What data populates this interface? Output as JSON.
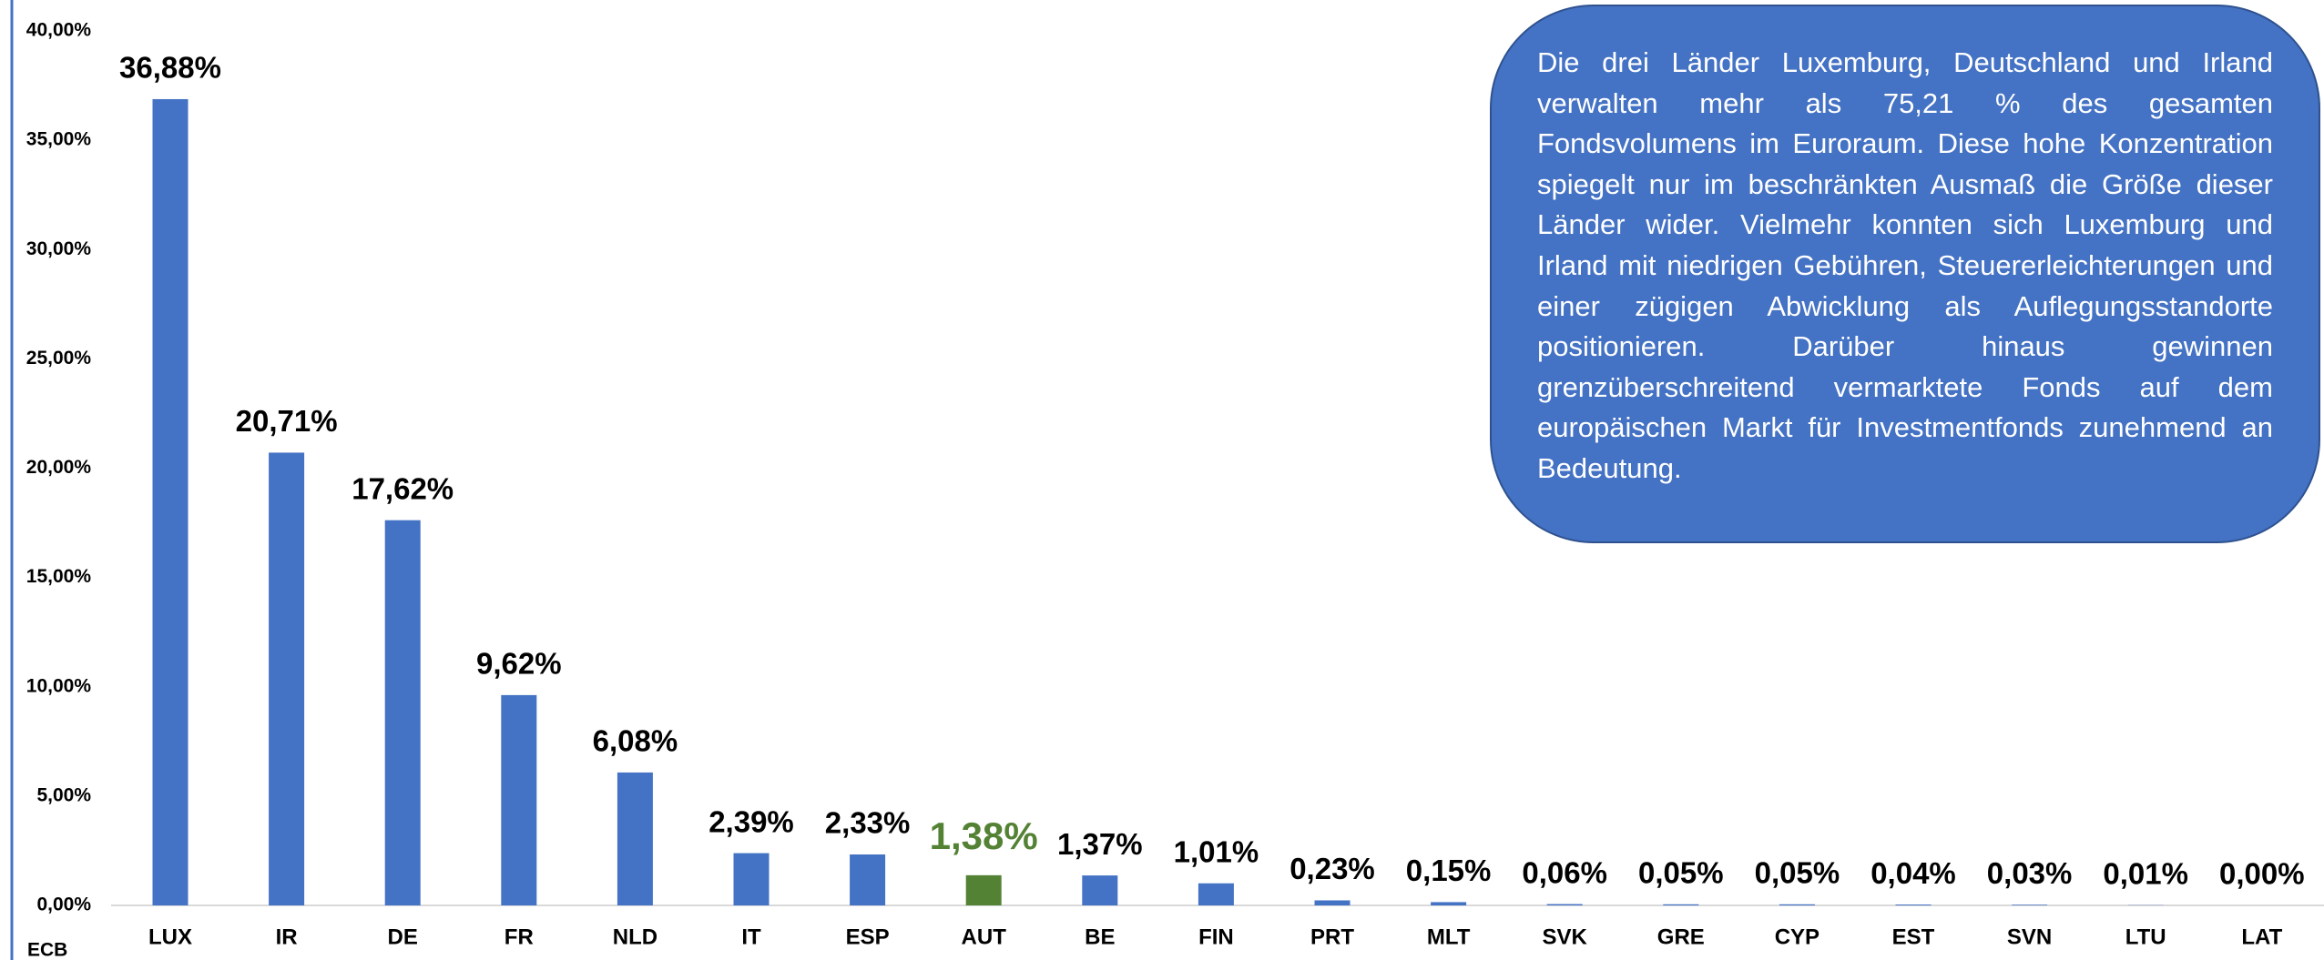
{
  "chart_data": {
    "type": "bar",
    "categories": [
      "LUX",
      "IR",
      "DE",
      "FR",
      "NLD",
      "IT",
      "ESP",
      "AUT",
      "BE",
      "FIN",
      "PRT",
      "MLT",
      "SVK",
      "GRE",
      "CYP",
      "EST",
      "SVN",
      "LTU",
      "LAT"
    ],
    "values": [
      36.88,
      20.71,
      17.62,
      9.62,
      6.08,
      2.39,
      2.33,
      1.38,
      1.37,
      1.01,
      0.23,
      0.15,
      0.06,
      0.05,
      0.05,
      0.04,
      0.03,
      0.01,
      0.0
    ],
    "value_labels": [
      "36,88%",
      "20,71%",
      "17,62%",
      "9,62%",
      "6,08%",
      "2,39%",
      "2,33%",
      "1,38%",
      "1,37%",
      "1,01%",
      "0,23%",
      "0,15%",
      "0,06%",
      "0,05%",
      "0,05%",
      "0,04%",
      "0,03%",
      "0,01%",
      "0,00%"
    ],
    "color": "#4472c4",
    "colors": [
      "#4472c4",
      "#4472c4",
      "#4472c4",
      "#4472c4",
      "#4472c4",
      "#4472c4",
      "#4472c4",
      "#548235",
      "#4472c4",
      "#4472c4",
      "#4472c4",
      "#4472c4",
      "#4472c4",
      "#4472c4",
      "#4472c4",
      "#4472c4",
      "#4472c4",
      "#4472c4",
      "#4472c4"
    ],
    "ylim": [
      0,
      40
    ],
    "yticks": [
      {
        "value": 0,
        "label": "0,00%"
      },
      {
        "value": 5,
        "label": "5,00%"
      },
      {
        "value": 10,
        "label": "10,00%"
      },
      {
        "value": 15,
        "label": "15,00%"
      },
      {
        "value": 20,
        "label": "20,00%"
      },
      {
        "value": 25,
        "label": "25,00%"
      },
      {
        "value": 30,
        "label": "30,00%"
      },
      {
        "value": 35,
        "label": "35,00%"
      },
      {
        "value": 40,
        "label": "40,00%"
      }
    ],
    "grid": false,
    "source": "ECB",
    "annotation": "Die drei Länder Luxemburg, Deutschland und Irland verwalten mehr als 75,21 % des gesamten Fondsvolumens im Euroraum. Diese hohe Konzentration spiegelt nur im beschränkten Ausmaß die Größe dieser Länder wider. Vielmehr konnten sich Luxemburg und Irland mit niedrigen Gebühren, Steuererleichterungen und einer zügigen Abwicklung als Auflegungsstandorte positionieren. Darüber hinaus gewinnen grenzüberschreitend vermarktete Fonds auf dem europäischen Markt für Investmentfonds zunehmend an Bedeutung."
  }
}
